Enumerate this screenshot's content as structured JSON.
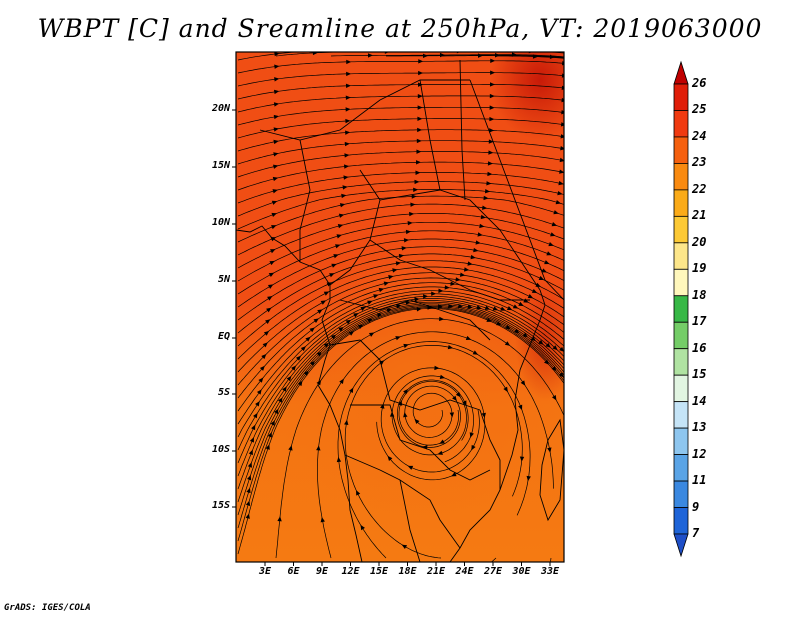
{
  "title": "WBPT [C] and Sreamline at 250hPa, VT: 2019063000",
  "credit": "GrADS: IGES/COLA",
  "map": {
    "field": "WBPT [C]",
    "level": "250hPa",
    "valid_time": "2019063000",
    "y_tick_labels": [
      "20N",
      "15N",
      "10N",
      "5N",
      "EQ",
      "5S",
      "10S",
      "15S"
    ],
    "x_tick_labels": [
      "3E",
      "6E",
      "9E",
      "12E",
      "15E",
      "18E",
      "21E",
      "24E",
      "27E",
      "30E",
      "33E"
    ],
    "base_color": "#f04e14",
    "regions": [
      {
        "name": "north-west-red",
        "color": "#eb3d0f"
      },
      {
        "name": "central-orange",
        "color": "#f26a14"
      },
      {
        "name": "south-orange",
        "color": "#f57a12"
      },
      {
        "name": "northeast-dark",
        "color": "#d4200a"
      }
    ]
  },
  "colorbar": {
    "labels": [
      "26",
      "25",
      "24",
      "23",
      "22",
      "21",
      "20",
      "19",
      "18",
      "17",
      "16",
      "15",
      "14",
      "13",
      "12",
      "11",
      "9",
      "7"
    ],
    "colors": [
      "#c00000",
      "#e01d08",
      "#f03a10",
      "#f5600f",
      "#f98a10",
      "#fbab18",
      "#fcc935",
      "#fde68a",
      "#fff7bc",
      "#37b846",
      "#74cd67",
      "#b0e3a2",
      "#e2f5e2",
      "#c5e4f7",
      "#8ec6ef",
      "#5aa4e6",
      "#3a88e0",
      "#1e64d8",
      "#1e4fc8"
    ]
  }
}
